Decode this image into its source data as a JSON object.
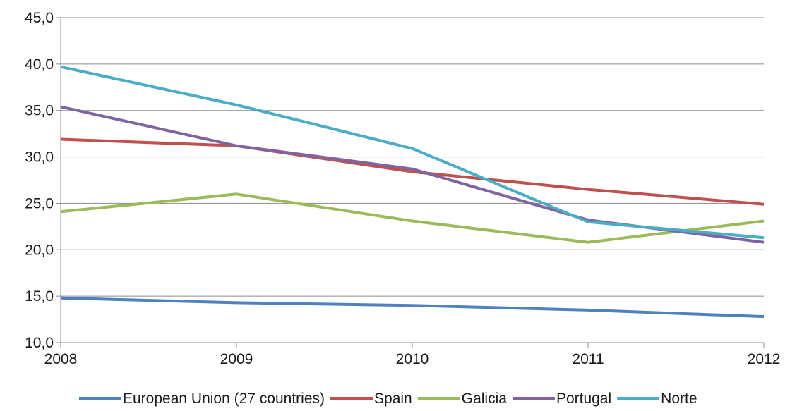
{
  "chart_data": {
    "type": "line",
    "title": "",
    "xlabel": "",
    "ylabel": "",
    "categories": [
      "2008",
      "2009",
      "2010",
      "2011",
      "2012"
    ],
    "y_tick_labels": [
      "10,0",
      "15,0",
      "20,0",
      "25,0",
      "30,0",
      "35,0",
      "40,0",
      "45,0"
    ],
    "ylim": [
      10,
      45
    ],
    "ytick_step": 5,
    "grid": true,
    "legend_position": "bottom",
    "series": [
      {
        "name": "European Union (27 countries)",
        "color": "#4F81BD",
        "values": [
          14.8,
          14.3,
          14.0,
          13.5,
          12.8
        ]
      },
      {
        "name": "Spain",
        "color": "#C0504D",
        "values": [
          31.9,
          31.2,
          28.4,
          26.5,
          24.9
        ]
      },
      {
        "name": "Galicia",
        "color": "#9BBB59",
        "values": [
          24.1,
          26.0,
          23.1,
          20.8,
          23.1
        ]
      },
      {
        "name": "Portugal",
        "color": "#8064A2",
        "values": [
          35.4,
          31.2,
          28.7,
          23.2,
          20.8
        ]
      },
      {
        "name": "Norte",
        "color": "#4BACC6",
        "values": [
          39.7,
          35.6,
          30.9,
          23.0,
          21.3
        ]
      }
    ]
  }
}
